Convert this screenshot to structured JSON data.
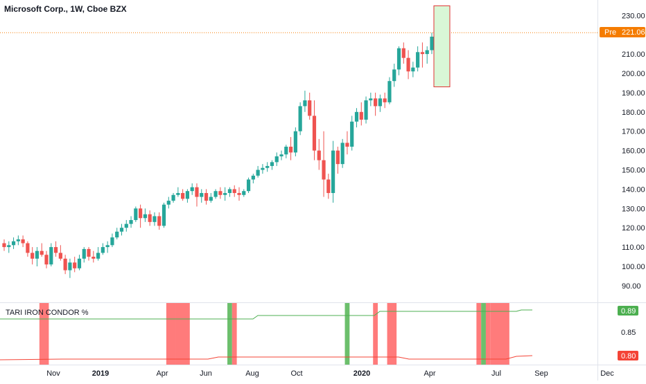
{
  "header": {
    "title": "Microsoft Corp., 1W, Cboe BZX"
  },
  "price_label": {
    "prefix": "Pre",
    "value": "221.06",
    "color": "#f57c00"
  },
  "indicator": {
    "title": "TARI IRON CONDOR %",
    "upper_value_label": "0.89",
    "lower_value_label": "0.80",
    "upper_color": "#4caf50",
    "lower_color": "#f44336"
  },
  "colors": {
    "up": "#26a69a",
    "down": "#ef5350",
    "current_price_line": "#f57c00",
    "band_red": "#ff7b7b",
    "band_green": "#6cbf6c",
    "highlight_box_fill": "#d9f7d6",
    "highlight_box_border": "#e03131"
  },
  "chart_data": [
    {
      "type": "candlestick",
      "title": "Microsoft Corp., 1W, Cboe BZX",
      "x_axis": {
        "ticks": [
          "Nov",
          "2019",
          "Apr",
          "Jun",
          "Aug",
          "Oct",
          "2020",
          "Apr",
          "Jul",
          "Sep",
          "Dec"
        ]
      },
      "y_axis": {
        "ticks": [
          90,
          100,
          110,
          120,
          130,
          140,
          150,
          160,
          170,
          180,
          190,
          200,
          210,
          220,
          230
        ],
        "range": [
          85,
          235
        ]
      },
      "current_price": 221.06,
      "highlight_box": {
        "low": 193,
        "high": 235
      },
      "candles": [
        [
          112,
          114,
          108,
          110
        ],
        [
          110,
          113,
          107,
          111
        ],
        [
          111,
          115,
          109,
          113
        ],
        [
          113,
          116,
          111,
          114
        ],
        [
          114,
          116,
          110,
          112
        ],
        [
          112,
          113,
          105,
          107
        ],
        [
          107,
          110,
          101,
          104
        ],
        [
          104,
          110,
          100,
          108
        ],
        [
          108,
          112,
          105,
          106
        ],
        [
          106,
          108,
          99,
          101
        ],
        [
          101,
          112,
          100,
          110
        ],
        [
          110,
          113,
          105,
          107
        ],
        [
          107,
          111,
          103,
          104
        ],
        [
          104,
          106,
          96,
          98
        ],
        [
          98,
          104,
          94,
          102
        ],
        [
          102,
          105,
          97,
          99
        ],
        [
          99,
          106,
          98,
          104
        ],
        [
          104,
          110,
          102,
          109
        ],
        [
          109,
          110,
          103,
          105
        ],
        [
          105,
          108,
          102,
          104
        ],
        [
          104,
          110,
          103,
          107
        ],
        [
          107,
          112,
          106,
          110
        ],
        [
          110,
          113,
          107,
          111
        ],
        [
          111,
          117,
          110,
          115
        ],
        [
          115,
          120,
          114,
          118
        ],
        [
          118,
          122,
          116,
          120
        ],
        [
          120,
          124,
          118,
          122
        ],
        [
          122,
          126,
          120,
          124
        ],
        [
          124,
          131,
          123,
          130
        ],
        [
          130,
          132,
          120,
          125
        ],
        [
          125,
          130,
          123,
          127
        ],
        [
          127,
          129,
          121,
          123
        ],
        [
          123,
          128,
          121,
          126
        ],
        [
          126,
          128,
          119,
          121
        ],
        [
          121,
          133,
          120,
          132
        ],
        [
          132,
          136,
          130,
          134
        ],
        [
          134,
          138,
          133,
          137
        ],
        [
          137,
          141,
          136,
          138
        ],
        [
          138,
          140,
          134,
          135
        ],
        [
          135,
          140,
          133,
          139
        ],
        [
          139,
          143,
          137,
          141
        ],
        [
          141,
          143,
          131,
          136
        ],
        [
          136,
          140,
          133,
          138
        ],
        [
          138,
          140,
          132,
          134
        ],
        [
          134,
          138,
          133,
          136
        ],
        [
          136,
          140,
          135,
          139
        ],
        [
          139,
          141,
          135,
          137
        ],
        [
          137,
          141,
          134,
          138
        ],
        [
          138,
          141,
          136,
          140
        ],
        [
          140,
          142,
          136,
          138
        ],
        [
          138,
          141,
          134,
          137
        ],
        [
          137,
          140,
          136,
          139
        ],
        [
          139,
          146,
          138,
          145
        ],
        [
          145,
          148,
          143,
          147
        ],
        [
          147,
          152,
          146,
          150
        ],
        [
          150,
          153,
          148,
          151
        ],
        [
          151,
          154,
          149,
          152
        ],
        [
          152,
          155,
          150,
          154
        ],
        [
          154,
          159,
          152,
          157
        ],
        [
          157,
          160,
          155,
          158
        ],
        [
          158,
          163,
          156,
          162
        ],
        [
          162,
          167,
          155,
          159
        ],
        [
          159,
          172,
          157,
          170
        ],
        [
          170,
          185,
          168,
          183
        ],
        [
          183,
          191,
          180,
          186
        ],
        [
          186,
          190,
          176,
          178
        ],
        [
          178,
          186,
          155,
          160
        ],
        [
          160,
          166,
          150,
          155
        ],
        [
          155,
          170,
          136,
          145
        ],
        [
          145,
          148,
          135,
          138
        ],
        [
          138,
          165,
          133,
          160
        ],
        [
          160,
          162,
          148,
          153
        ],
        [
          153,
          166,
          151,
          164
        ],
        [
          164,
          170,
          158,
          162
        ],
        [
          162,
          178,
          160,
          175
        ],
        [
          175,
          182,
          172,
          180
        ],
        [
          180,
          185,
          173,
          176
        ],
        [
          176,
          188,
          174,
          186
        ],
        [
          186,
          190,
          183,
          187
        ],
        [
          187,
          190,
          178,
          183
        ],
        [
          183,
          189,
          180,
          187
        ],
        [
          187,
          190,
          182,
          185
        ],
        [
          185,
          198,
          184,
          196
        ],
        [
          196,
          205,
          193,
          202
        ],
        [
          202,
          214,
          199,
          213
        ],
        [
          213,
          216,
          205,
          208
        ],
        [
          208,
          212,
          197,
          201
        ],
        [
          201,
          206,
          198,
          203
        ],
        [
          203,
          214,
          201,
          211
        ],
        [
          211,
          216,
          203,
          210
        ],
        [
          210,
          214,
          205,
          212
        ],
        [
          212,
          221,
          210,
          219
        ]
      ]
    },
    {
      "type": "line",
      "title": "TARI IRON CONDOR %",
      "y_axis": {
        "ticks": [
          0.85
        ]
      },
      "series": [
        {
          "values_last": 0.89
        },
        {
          "values_last": 0.8
        }
      ],
      "bands": [
        {
          "from": 8,
          "to": 9,
          "color": "red"
        },
        {
          "from": 35,
          "to": 36,
          "color": "red"
        },
        {
          "from": 37,
          "to": 39,
          "color": "red"
        },
        {
          "from": 48,
          "to": 48,
          "color": "green"
        },
        {
          "from": 49,
          "to": 49,
          "color": "red"
        },
        {
          "from": 73,
          "to": 73,
          "color": "green"
        },
        {
          "from": 79,
          "to": 79,
          "color": "red"
        },
        {
          "from": 82,
          "to": 83,
          "color": "red"
        },
        {
          "from": 101,
          "to": 101,
          "color": "red"
        },
        {
          "from": 102,
          "to": 102,
          "color": "green"
        },
        {
          "from": 103,
          "to": 103,
          "color": "red"
        },
        {
          "from": 104,
          "to": 107,
          "color": "red"
        }
      ]
    }
  ]
}
